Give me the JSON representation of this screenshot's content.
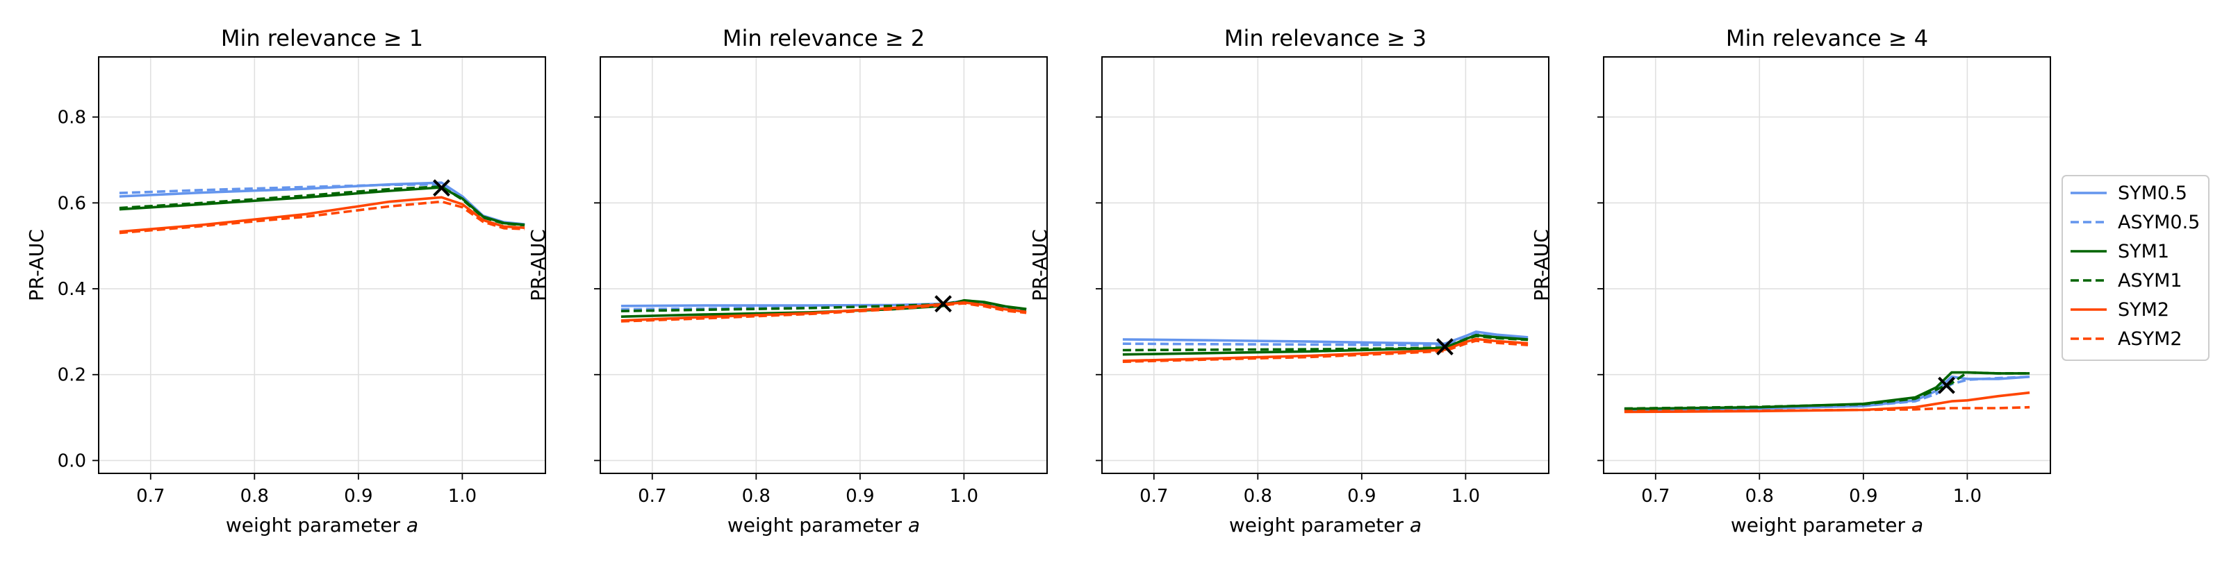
{
  "chart_data": [
    {
      "type": "line",
      "title": "Min relevance ≥ 1",
      "xlabel": "weight parameter",
      "xlabel_italic": "a",
      "ylabel": "PR-AUC",
      "xlim": [
        0.65,
        1.08
      ],
      "ylim": [
        -0.03,
        0.94
      ],
      "xticks": [
        "0.7",
        "0.8",
        "0.9",
        "1.0"
      ],
      "yticks": [
        "0.0",
        "0.2",
        "0.4",
        "0.6",
        "0.8"
      ],
      "grid": true,
      "marker": {
        "x": 0.98,
        "y": 0.635
      },
      "x": [
        0.67,
        0.75,
        0.85,
        0.93,
        0.98,
        1.0,
        1.02,
        1.04,
        1.06
      ],
      "series": [
        {
          "name": "SYM0.5",
          "values": [
            0.615,
            0.624,
            0.633,
            0.643,
            0.647,
            0.615,
            0.57,
            0.555,
            0.55
          ]
        },
        {
          "name": "ASYM0.5",
          "values": [
            0.623,
            0.63,
            0.637,
            0.642,
            0.643,
            0.61,
            0.566,
            0.553,
            0.549
          ]
        },
        {
          "name": "SYM1",
          "values": [
            0.585,
            0.597,
            0.613,
            0.628,
            0.636,
            0.61,
            0.568,
            0.553,
            0.549
          ]
        },
        {
          "name": "ASYM1",
          "values": [
            0.588,
            0.6,
            0.617,
            0.632,
            0.638,
            0.608,
            0.566,
            0.552,
            0.548
          ]
        },
        {
          "name": "SYM2",
          "values": [
            0.533,
            0.549,
            0.574,
            0.603,
            0.613,
            0.597,
            0.56,
            0.545,
            0.542
          ]
        },
        {
          "name": "ASYM2",
          "values": [
            0.53,
            0.546,
            0.568,
            0.592,
            0.603,
            0.59,
            0.556,
            0.541,
            0.539
          ]
        }
      ]
    },
    {
      "type": "line",
      "title": "Min relevance ≥ 2",
      "xlabel": "weight parameter",
      "xlabel_italic": "a",
      "ylabel": "PR-AUC",
      "xlim": [
        0.65,
        1.08
      ],
      "ylim": [
        -0.03,
        0.94
      ],
      "xticks": [
        "0.7",
        "0.8",
        "0.9",
        "1.0"
      ],
      "yticks": [],
      "grid": true,
      "marker": {
        "x": 0.98,
        "y": 0.365
      },
      "x": [
        0.67,
        0.75,
        0.85,
        0.93,
        0.98,
        1.0,
        1.02,
        1.04,
        1.06
      ],
      "series": [
        {
          "name": "SYM0.5",
          "values": [
            0.36,
            0.361,
            0.361,
            0.362,
            0.365,
            0.372,
            0.368,
            0.358,
            0.352
          ]
        },
        {
          "name": "ASYM0.5",
          "values": [
            0.352,
            0.354,
            0.357,
            0.36,
            0.364,
            0.371,
            0.367,
            0.357,
            0.351
          ]
        },
        {
          "name": "SYM1",
          "values": [
            0.335,
            0.34,
            0.345,
            0.352,
            0.36,
            0.373,
            0.369,
            0.359,
            0.353
          ]
        },
        {
          "name": "ASYM1",
          "values": [
            0.348,
            0.351,
            0.355,
            0.36,
            0.364,
            0.372,
            0.368,
            0.358,
            0.352
          ]
        },
        {
          "name": "SYM2",
          "values": [
            0.326,
            0.334,
            0.343,
            0.355,
            0.364,
            0.368,
            0.362,
            0.352,
            0.346
          ]
        },
        {
          "name": "ASYM2",
          "values": [
            0.324,
            0.331,
            0.341,
            0.352,
            0.362,
            0.366,
            0.359,
            0.349,
            0.344
          ]
        }
      ]
    },
    {
      "type": "line",
      "title": "Min relevance ≥ 3",
      "xlabel": "weight parameter",
      "xlabel_italic": "a",
      "ylabel": "PR-AUC",
      "xlim": [
        0.65,
        1.08
      ],
      "ylim": [
        -0.03,
        0.94
      ],
      "xticks": [
        "0.7",
        "0.8",
        "0.9",
        "1.0"
      ],
      "yticks": [],
      "grid": true,
      "marker": {
        "x": 0.98,
        "y": 0.265
      },
      "x": [
        0.67,
        0.75,
        0.85,
        0.93,
        0.98,
        1.0,
        1.01,
        1.03,
        1.06
      ],
      "series": [
        {
          "name": "SYM0.5",
          "values": [
            0.282,
            0.28,
            0.277,
            0.274,
            0.272,
            0.29,
            0.3,
            0.293,
            0.287
          ]
        },
        {
          "name": "ASYM0.5",
          "values": [
            0.272,
            0.271,
            0.27,
            0.269,
            0.269,
            0.287,
            0.296,
            0.29,
            0.285
          ]
        },
        {
          "name": "SYM1",
          "values": [
            0.247,
            0.25,
            0.254,
            0.259,
            0.262,
            0.283,
            0.292,
            0.287,
            0.282
          ]
        },
        {
          "name": "ASYM1",
          "values": [
            0.257,
            0.258,
            0.259,
            0.261,
            0.263,
            0.282,
            0.29,
            0.285,
            0.281
          ]
        },
        {
          "name": "SYM2",
          "values": [
            0.232,
            0.237,
            0.244,
            0.252,
            0.258,
            0.276,
            0.283,
            0.278,
            0.273
          ]
        },
        {
          "name": "ASYM2",
          "values": [
            0.23,
            0.235,
            0.241,
            0.249,
            0.255,
            0.272,
            0.279,
            0.274,
            0.269
          ]
        }
      ]
    },
    {
      "type": "line",
      "title": "Min relevance ≥ 4",
      "xlabel": "weight parameter",
      "xlabel_italic": "a",
      "ylabel": "PR-AUC",
      "xlim": [
        0.65,
        1.08
      ],
      "ylim": [
        -0.03,
        0.94
      ],
      "xticks": [
        "0.7",
        "0.8",
        "0.9",
        "1.0"
      ],
      "yticks": [],
      "grid": true,
      "marker": {
        "x": 0.98,
        "y": 0.175
      },
      "x": [
        0.67,
        0.8,
        0.9,
        0.95,
        0.97,
        0.985,
        1.0,
        1.03,
        1.06
      ],
      "series": [
        {
          "name": "SYM0.5",
          "values": [
            0.118,
            0.121,
            0.127,
            0.14,
            0.162,
            0.195,
            0.19,
            0.19,
            0.195
          ]
        },
        {
          "name": "ASYM0.5",
          "values": [
            0.12,
            0.122,
            0.127,
            0.138,
            0.155,
            0.178,
            0.188,
            0.192,
            0.195
          ]
        },
        {
          "name": "SYM1",
          "values": [
            0.12,
            0.124,
            0.132,
            0.147,
            0.17,
            0.205,
            0.205,
            0.203,
            0.203
          ]
        },
        {
          "name": "ASYM1",
          "values": [
            0.121,
            0.125,
            0.131,
            0.144,
            0.165,
            0.18,
            0.205,
            0.203,
            0.203
          ]
        },
        {
          "name": "SYM2",
          "values": [
            0.113,
            0.115,
            0.118,
            0.124,
            0.132,
            0.138,
            0.14,
            0.15,
            0.158
          ]
        },
        {
          "name": "ASYM2",
          "values": [
            0.115,
            0.116,
            0.118,
            0.119,
            0.121,
            0.122,
            0.122,
            0.122,
            0.124
          ]
        }
      ]
    }
  ],
  "series_styles": [
    {
      "name": "SYM0.5",
      "color": "#6495ED",
      "dash": "solid"
    },
    {
      "name": "ASYM0.5",
      "color": "#6495ED",
      "dash": "dashed"
    },
    {
      "name": "SYM1",
      "color": "#006400",
      "dash": "solid"
    },
    {
      "name": "ASYM1",
      "color": "#006400",
      "dash": "dashed"
    },
    {
      "name": "SYM2",
      "color": "#FF4500",
      "dash": "solid"
    },
    {
      "name": "ASYM2",
      "color": "#FF4500",
      "dash": "dashed"
    }
  ],
  "legend": {
    "placement": "right",
    "entries": [
      "SYM0.5",
      "ASYM0.5",
      "SYM1",
      "ASYM1",
      "SYM2",
      "ASYM2"
    ]
  }
}
